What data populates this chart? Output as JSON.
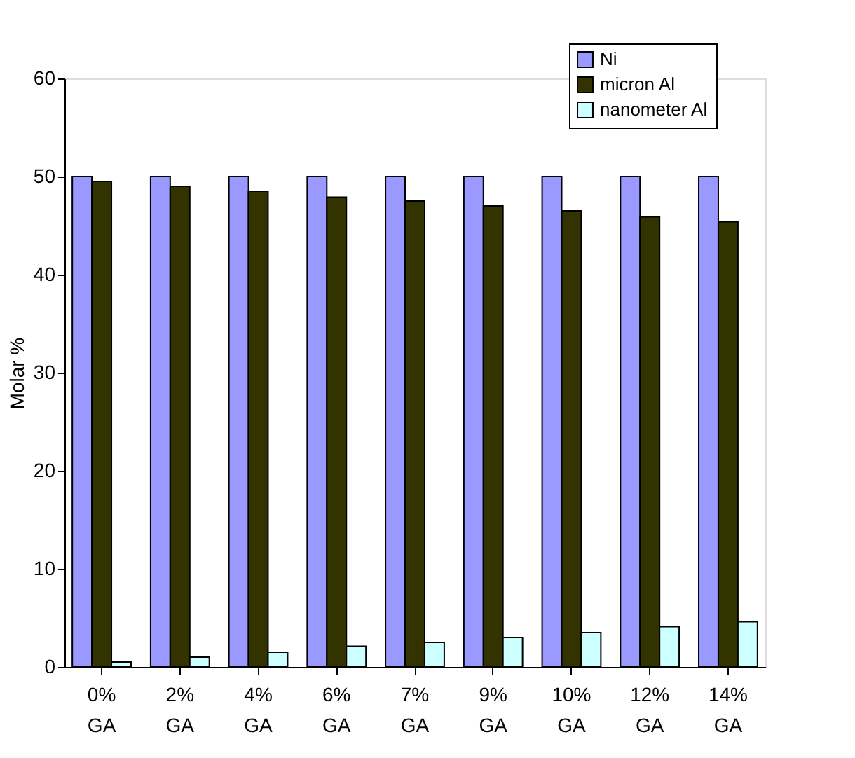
{
  "chart_data": {
    "type": "bar",
    "ylabel": "Molar %",
    "categories": [
      "0% GA",
      "2% GA",
      "4% GA",
      "6% GA",
      "7% GA",
      "9% GA",
      "10% GA",
      "12% GA",
      "14% GA"
    ],
    "series": [
      {
        "name": "Ni",
        "color": "#9999ff",
        "values": [
          50,
          50,
          50,
          50,
          50,
          50,
          50,
          50,
          50
        ]
      },
      {
        "name": "micron Al",
        "color": "#333300",
        "values": [
          49.5,
          49,
          48.5,
          47.9,
          47.5,
          47,
          46.5,
          45.9,
          45.4
        ]
      },
      {
        "name": "nanometer Al",
        "color": "#ccffff",
        "values": [
          0.5,
          1,
          1.5,
          2.1,
          2.5,
          3,
          3.5,
          4.1,
          4.6
        ]
      }
    ],
    "ylim": [
      0,
      60
    ],
    "yticks": [
      0,
      10,
      20,
      30,
      40,
      50,
      60
    ],
    "grid": false,
    "legend": "top right"
  }
}
